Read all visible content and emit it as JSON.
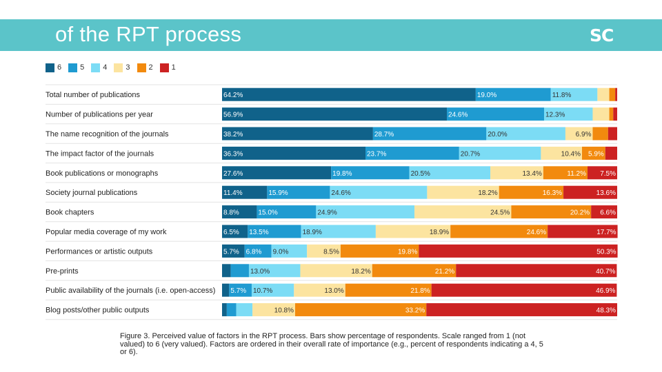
{
  "header": {
    "title": "of the RPT process",
    "logo": "SC"
  },
  "caption": "Figure 3.  Perceived value of factors in the RPT process.  Bars show percentage of respondents.  Scale ranged from 1 (not valued) to 6 (very valued). Factors are ordered in their overall rate of importance (e.g., percent of respondents indicating a 4, 5 or 6).",
  "chart_data": {
    "type": "bar",
    "orientation": "horizontal",
    "stacked": true,
    "legend_position": "top-left",
    "xlim": [
      0,
      100
    ],
    "categories": [
      "Total number of publications",
      "Number of publications per year",
      "The name recognition of the journals",
      "The impact factor of the journals",
      "Book publications or monographs",
      "Society journal publications",
      "Book chapters",
      "Popular media coverage of my work",
      "Performances or artistic outputs",
      "Pre-prints",
      "Public availability of the journals (i.e. open-access)",
      "Blog posts/other public outputs"
    ],
    "series": [
      {
        "name": "6",
        "color": "#10628a",
        "values": [
          64.2,
          56.9,
          38.2,
          36.3,
          27.6,
          11.4,
          8.8,
          6.5,
          5.7,
          2.2,
          1.8,
          1.2
        ]
      },
      {
        "name": "5",
        "color": "#1f9bd1",
        "values": [
          19.0,
          24.6,
          28.7,
          23.7,
          19.8,
          15.9,
          15.0,
          13.5,
          6.8,
          4.6,
          5.7,
          2.4
        ]
      },
      {
        "name": "4",
        "color": "#7cdcf5",
        "values": [
          11.8,
          12.3,
          20.0,
          20.7,
          20.5,
          24.6,
          24.9,
          18.9,
          9.0,
          13.0,
          10.7,
          4.1
        ]
      },
      {
        "name": "3",
        "color": "#fce4a0",
        "values": [
          3.0,
          4.2,
          6.9,
          10.4,
          13.4,
          18.2,
          24.5,
          18.9,
          8.5,
          18.2,
          13.0,
          10.8
        ]
      },
      {
        "name": "2",
        "color": "#f28a0e",
        "values": [
          1.5,
          1.0,
          3.9,
          5.9,
          11.2,
          16.3,
          20.2,
          24.6,
          19.8,
          21.2,
          21.8,
          33.2
        ]
      },
      {
        "name": "1",
        "color": "#cc2222",
        "values": [
          0.5,
          1.0,
          2.3,
          3.0,
          7.5,
          13.6,
          6.6,
          17.7,
          50.3,
          40.7,
          46.9,
          48.3
        ]
      }
    ],
    "data_labels": [
      [
        "64.2%",
        "19.0%",
        "11.8%",
        "",
        "",
        ""
      ],
      [
        "56.9%",
        "24.6%",
        "12.3%",
        "",
        "",
        ""
      ],
      [
        "38.2%",
        "28.7%",
        "20.0%",
        "6.9%",
        "",
        ""
      ],
      [
        "36.3%",
        "23.7%",
        "20.7%",
        "10.4%",
        "5.9%",
        ""
      ],
      [
        "27.6%",
        "19.8%",
        "20.5%",
        "13.4%",
        "11.2%",
        "7.5%"
      ],
      [
        "11.4%",
        "15.9%",
        "24.6%",
        "18.2%",
        "16.3%",
        "13.6%"
      ],
      [
        "8.8%",
        "15.0%",
        "24.9%",
        "24.5%",
        "20.2%",
        "6.6%"
      ],
      [
        "6.5%",
        "13.5%",
        "18.9%",
        "18.9%",
        "24.6%",
        "17.7%"
      ],
      [
        "5.7%",
        "6.8%",
        "9.0%",
        "8.5%",
        "19.8%",
        "50.3%"
      ],
      [
        "",
        "",
        "13.0%",
        "18.2%",
        "21.2%",
        "40.7%"
      ],
      [
        "",
        "5.7%",
        "10.7%",
        "13.0%",
        "21.8%",
        "46.9%"
      ],
      [
        "",
        "",
        "",
        "10.8%",
        "33.2%",
        "48.3%"
      ]
    ]
  }
}
